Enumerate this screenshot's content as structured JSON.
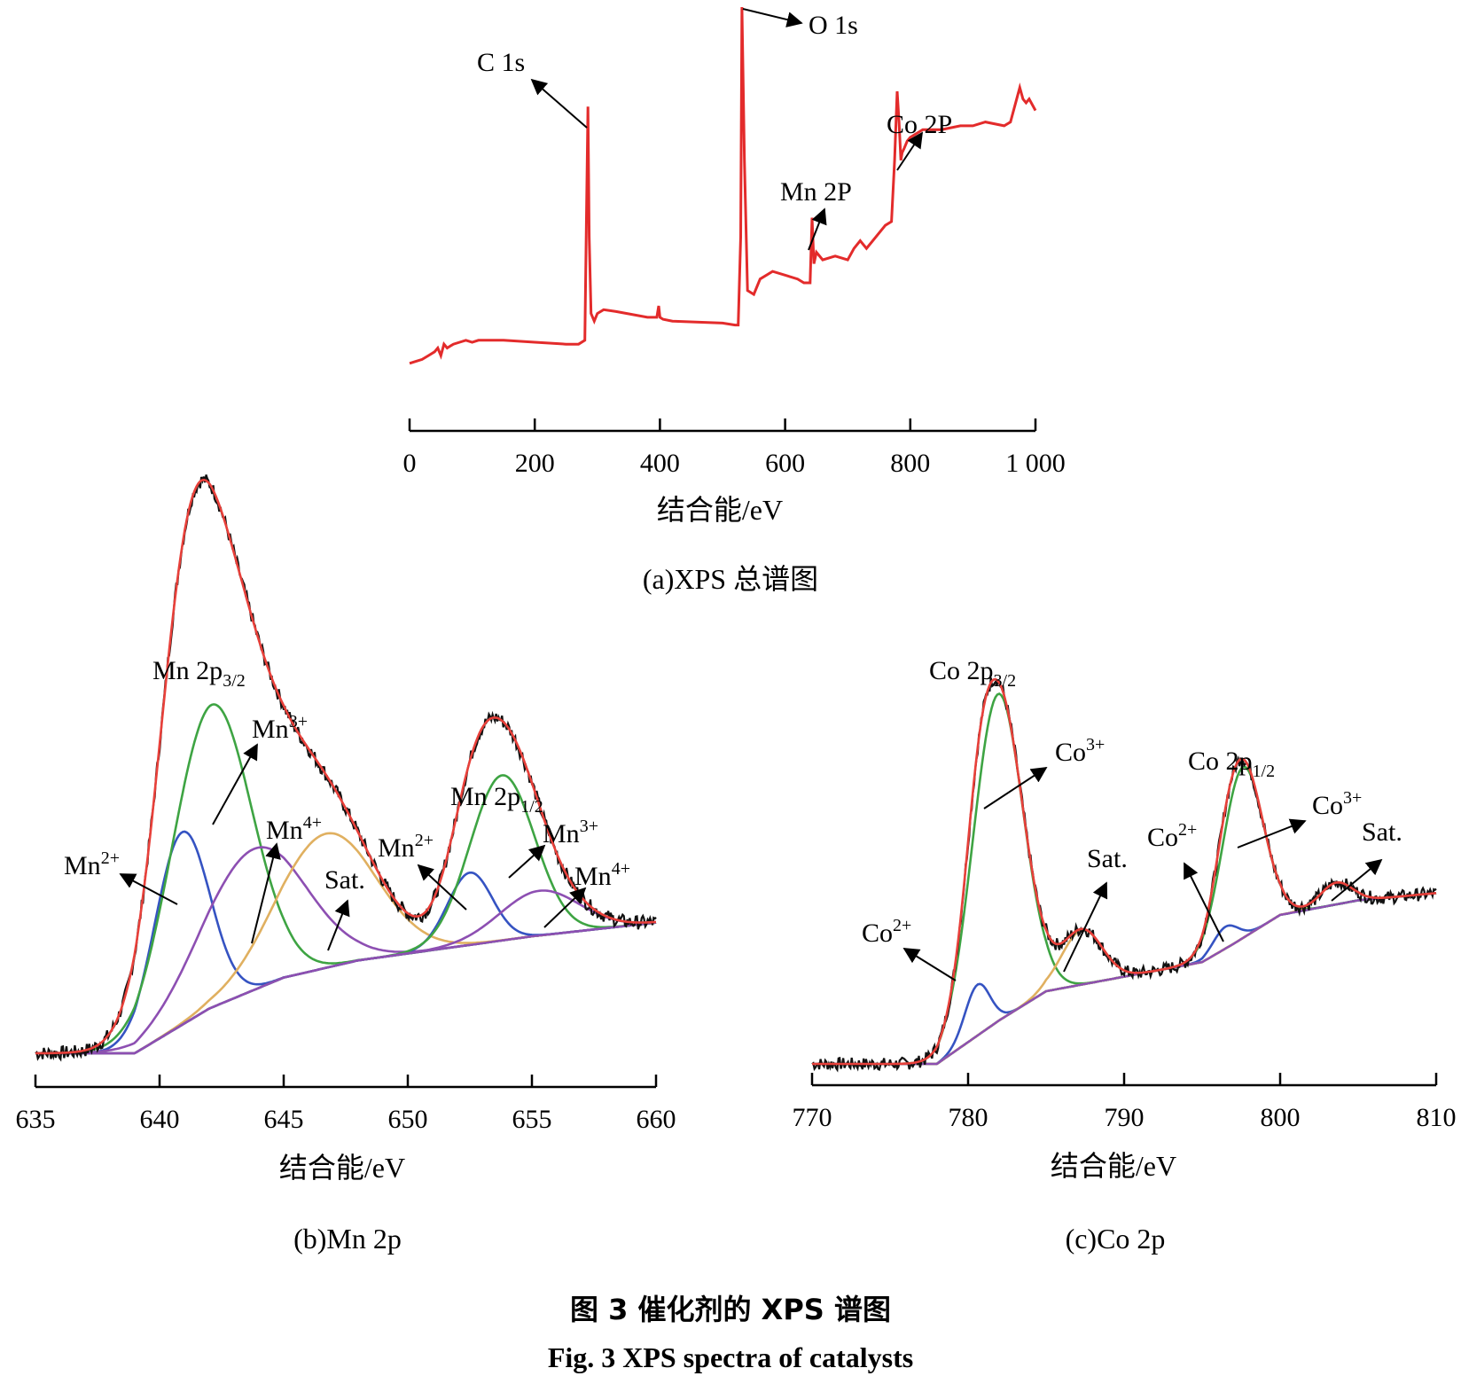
{
  "figure": {
    "caption_cn": "图 3   催化剂的 XPS 谱图",
    "caption_en": "Fig. 3   XPS spectra of catalysts"
  },
  "colors": {
    "survey": "#e32b2b",
    "raw": "#111111",
    "fit": "#e8403a",
    "green": "#3ea443",
    "blue": "#3553c2",
    "purple": "#8d4fb2",
    "satellite": "#e0b060"
  },
  "chart_data": [
    {
      "id": "a",
      "type": "line",
      "caption": "(a)XPS 总谱图",
      "xlabel": "结合能/eV",
      "xlim": [
        0,
        1000
      ],
      "xticks": [
        0,
        200,
        400,
        600,
        800,
        1000
      ],
      "xtick_labels": [
        "0",
        "200",
        "400",
        "600",
        "800",
        "1 000"
      ],
      "y_scale": "relative intensity (no axis shown)",
      "series": [
        {
          "x": [
            0,
            10,
            20,
            30,
            40,
            45,
            50,
            55,
            60,
            70,
            80,
            90,
            100,
            110,
            150,
            200,
            250,
            270,
            280,
            283,
            285,
            287,
            290,
            295,
            300,
            310,
            330,
            380,
            395,
            398,
            400,
            405,
            420,
            500,
            520,
            525,
            529,
            531,
            535,
            540,
            550,
            560,
            580,
            620,
            630,
            635,
            640,
            643,
            646,
            650,
            660,
            680,
            700,
            710,
            720,
            730,
            760,
            770,
            775,
            779,
            782,
            785,
            787,
            790,
            795,
            800,
            820,
            850,
            880,
            900,
            920,
            950,
            960,
            970,
            975,
            980,
            985,
            990,
            1000
          ],
          "y": [
            0.07,
            0.075,
            0.08,
            0.09,
            0.1,
            0.11,
            0.09,
            0.12,
            0.11,
            0.12,
            0.125,
            0.13,
            0.125,
            0.13,
            0.13,
            0.125,
            0.12,
            0.12,
            0.13,
            0.5,
            0.74,
            0.4,
            0.2,
            0.18,
            0.2,
            0.21,
            0.205,
            0.19,
            0.19,
            0.22,
            0.19,
            0.185,
            0.18,
            0.175,
            0.17,
            0.17,
            0.4,
            1.0,
            0.6,
            0.26,
            0.25,
            0.29,
            0.31,
            0.29,
            0.28,
            0.28,
            0.28,
            0.45,
            0.33,
            0.36,
            0.34,
            0.35,
            0.34,
            0.37,
            0.39,
            0.37,
            0.43,
            0.44,
            0.6,
            0.78,
            0.7,
            0.6,
            0.62,
            0.63,
            0.65,
            0.66,
            0.68,
            0.68,
            0.69,
            0.69,
            0.7,
            0.69,
            0.7,
            0.76,
            0.79,
            0.76,
            0.75,
            0.76,
            0.73
          ]
        }
      ],
      "annotations": [
        {
          "text": "C 1s",
          "x": 284
        },
        {
          "text": "O 1s",
          "x": 531
        },
        {
          "text": "Mn 2P",
          "x": 641
        },
        {
          "text": "Co 2P",
          "x": 780
        }
      ]
    },
    {
      "id": "b",
      "type": "line",
      "caption": "(b)Mn 2p",
      "xlabel": "结合能/eV",
      "xlim": [
        635,
        660
      ],
      "xticks": [
        635,
        640,
        645,
        650,
        655,
        660
      ],
      "xtick_labels": [
        "635",
        "640",
        "645",
        "650",
        "655",
        "660"
      ],
      "y_scale": "relative intensity (no axis shown)",
      "background": {
        "x": [
          635,
          639,
          642,
          645,
          648,
          652,
          655,
          660
        ],
        "y": [
          0.0,
          0.0,
          0.13,
          0.22,
          0.27,
          0.31,
          0.34,
          0.38
        ]
      },
      "components": [
        {
          "color_key": "blue",
          "center": 640.9,
          "height": 0.56,
          "width": 1.1,
          "label": "Mn2+"
        },
        {
          "color_key": "green",
          "center": 642.1,
          "height": 0.88,
          "width": 1.6,
          "label": "Mn3+"
        },
        {
          "color_key": "purple",
          "center": 643.8,
          "height": 0.41,
          "width": 2.1,
          "label": "Mn4+"
        },
        {
          "color_key": "satellite",
          "center": 646.7,
          "height": 0.39,
          "width": 2.0,
          "label": "Sat."
        },
        {
          "color_key": "blue",
          "center": 652.5,
          "height": 0.21,
          "width": 0.9,
          "label": "Mn2+"
        },
        {
          "color_key": "green",
          "center": 653.8,
          "height": 0.48,
          "width": 1.3,
          "label": "Mn3+"
        },
        {
          "color_key": "purple",
          "center": 655.3,
          "height": 0.13,
          "width": 1.6,
          "label": "Mn4+"
        }
      ],
      "annotations": [
        {
          "text": "Mn 2p",
          "sub": "3/2"
        },
        {
          "text": "Mn 2p",
          "sub": "1/2"
        },
        {
          "text": "Mn",
          "sup": "2+",
          "target_x": 640.9
        },
        {
          "text": "Mn",
          "sup": "3+",
          "target_x": 642.1
        },
        {
          "text": "Mn",
          "sup": "4+",
          "target_x": 643.8
        },
        {
          "text": "Sat.",
          "target_x": 646.7
        },
        {
          "text": "Mn",
          "sup": "2+",
          "target_x": 652.5
        },
        {
          "text": "Mn",
          "sup": "3+",
          "target_x": 654.0
        },
        {
          "text": "Mn",
          "sup": "4+",
          "target_x": 655.3
        }
      ]
    },
    {
      "id": "c",
      "type": "line",
      "caption": "(c)Co 2p",
      "xlabel": "结合能/eV",
      "xlim": [
        770,
        810
      ],
      "xticks": [
        770,
        780,
        790,
        800,
        810
      ],
      "xtick_labels": [
        "770",
        "780",
        "790",
        "800",
        "810"
      ],
      "y_scale": "relative intensity (no axis shown)",
      "background": {
        "x": [
          770,
          778,
          782,
          785,
          790,
          795,
          797,
          800,
          805,
          810
        ],
        "y": [
          0.0,
          0.0,
          0.12,
          0.2,
          0.24,
          0.28,
          0.33,
          0.41,
          0.45,
          0.47
        ]
      },
      "components": [
        {
          "color_key": "blue",
          "center": 780.6,
          "height": 0.14,
          "width": 0.8,
          "label": "Co2+"
        },
        {
          "color_key": "green",
          "center": 781.9,
          "height": 0.9,
          "width": 1.6,
          "label": "Co3+"
        },
        {
          "color_key": "satellite",
          "center": 787.3,
          "height": 0.15,
          "width": 1.3,
          "label": "Sat."
        },
        {
          "color_key": "blue",
          "center": 796.5,
          "height": 0.06,
          "width": 0.8,
          "label": "Co2+"
        },
        {
          "color_key": "green",
          "center": 797.6,
          "height": 0.47,
          "width": 1.3,
          "label": "Co3+"
        },
        {
          "color_key": "satellite",
          "center": 803.6,
          "height": 0.06,
          "width": 1.0,
          "label": "Sat."
        }
      ],
      "annotations": [
        {
          "text": "Co 2p",
          "sub": "3/2"
        },
        {
          "text": "Co 2p",
          "sub": "1/2"
        },
        {
          "text": "Co",
          "sup": "2+",
          "target_x": 780.6
        },
        {
          "text": "Co",
          "sup": "3+",
          "target_x": 781.9
        },
        {
          "text": "Sat.",
          "target_x": 787.3
        },
        {
          "text": "Co",
          "sup": "2+",
          "target_x": 796.5
        },
        {
          "text": "Co",
          "sup": "3+",
          "target_x": 797.6
        },
        {
          "text": "Sat.",
          "target_x": 803.6
        }
      ]
    }
  ]
}
